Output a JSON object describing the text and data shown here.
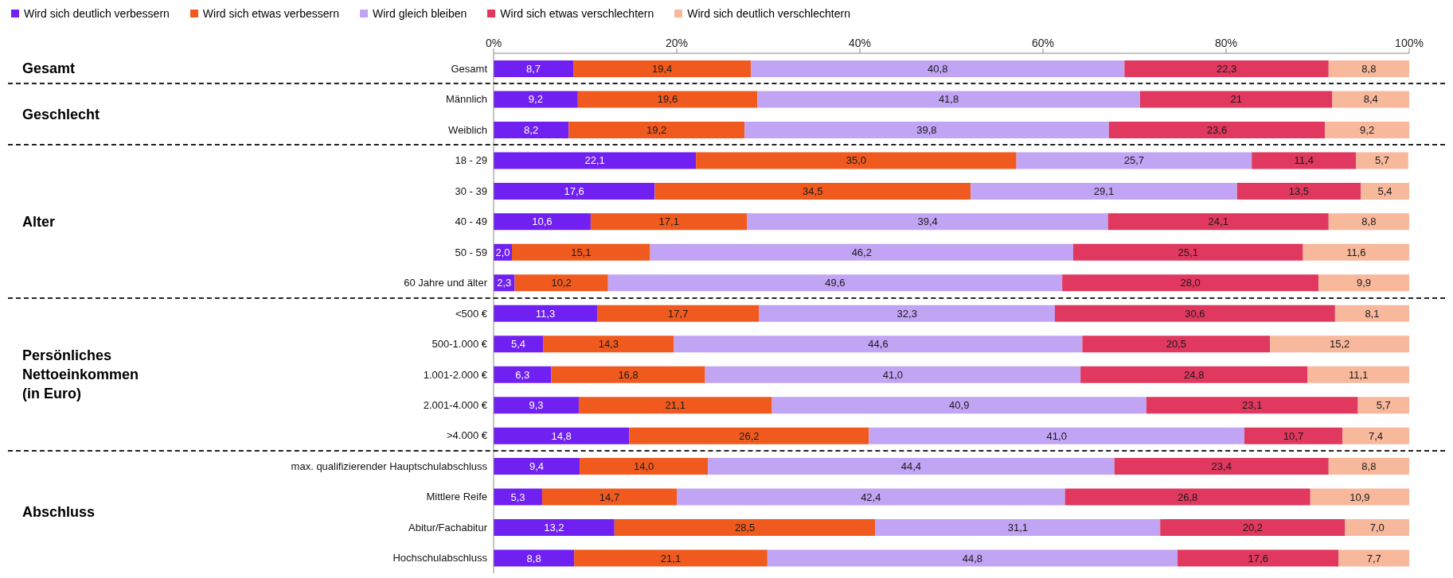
{
  "chart_data": {
    "type": "bar",
    "orientation": "horizontal",
    "stacked": true,
    "legend": "top",
    "categories": [
      "Gesamt",
      "Männlich",
      "Weiblich",
      "18 - 29",
      "30 - 39",
      "40 - 49",
      "50 - 59",
      "60 Jahre und älter",
      "<500 €",
      "500-1.000 €",
      "1.001-2.000 €",
      "2.001-4.000 €",
      ">4.000 €",
      "max. qualifizierender Hauptschulabschluss",
      "Mittlere Reife",
      "Abitur/Fachabitur",
      "Hochschulabschluss"
    ],
    "xlim": [
      0,
      100
    ],
    "xticks": [
      {
        "value": 0,
        "label": "0%"
      },
      {
        "value": 20,
        "label": "20%"
      },
      {
        "value": 40,
        "label": "40%"
      },
      {
        "value": 60,
        "label": "60%"
      },
      {
        "value": 80,
        "label": "80%"
      },
      {
        "value": 100,
        "label": "100%"
      }
    ],
    "series": [
      {
        "name": "Wird sich deutlich verbessern",
        "color": "#7020f0",
        "values": [
          8.7,
          9.2,
          8.2,
          22.1,
          17.6,
          10.6,
          2.0,
          2.3,
          11.3,
          5.4,
          6.3,
          9.3,
          14.8,
          9.4,
          5.3,
          13.2,
          8.8
        ],
        "value_labels": [
          "8,7",
          "9,2",
          "8,2",
          "22,1",
          "17,6",
          "10,6",
          "2,0",
          "2,3",
          "11,3",
          "5,4",
          "6,3",
          "9,3",
          "14,8",
          "9,4",
          "5,3",
          "13,2",
          "8,8"
        ]
      },
      {
        "name": "Wird sich etwas verbessern",
        "color": "#f05a1e",
        "values": [
          19.4,
          19.6,
          19.2,
          35.0,
          34.5,
          17.1,
          15.1,
          10.2,
          17.7,
          14.3,
          16.8,
          21.1,
          26.2,
          14.0,
          14.7,
          28.5,
          21.1
        ],
        "value_labels": [
          "19,4",
          "19,6",
          "19,2",
          "35,0",
          "34,5",
          "17,1",
          "15,1",
          "10,2",
          "17,7",
          "14,3",
          "16,8",
          "21,1",
          "26,2",
          "14,0",
          "14,7",
          "28,5",
          "21,1"
        ]
      },
      {
        "name": "Wird gleich bleiben",
        "color": "#c2a4f5",
        "values": [
          40.8,
          41.8,
          39.8,
          25.7,
          29.1,
          39.4,
          46.2,
          49.6,
          32.3,
          44.6,
          41.0,
          40.9,
          41.0,
          44.4,
          42.4,
          31.1,
          44.8
        ],
        "value_labels": [
          "40,8",
          "41,8",
          "39,8",
          "25,7",
          "29,1",
          "39,4",
          "46,2",
          "49,6",
          "32,3",
          "44,6",
          "41,0",
          "40,9",
          "41,0",
          "44,4",
          "42,4",
          "31,1",
          "44,8"
        ]
      },
      {
        "name": "Wird sich etwas verschlechtern",
        "color": "#e0385e",
        "values": [
          22.3,
          21,
          23.6,
          11.4,
          13.5,
          24.1,
          25.1,
          28.0,
          30.6,
          20.5,
          24.8,
          23.1,
          10.7,
          23.4,
          26.8,
          20.2,
          17.6
        ],
        "value_labels": [
          "22,3",
          "21",
          "23,6",
          "11,4",
          "13,5",
          "24,1",
          "25,1",
          "28,0",
          "30,6",
          "20,5",
          "24,8",
          "23,1",
          "10,7",
          "23,4",
          "26,8",
          "20,2",
          "17,6"
        ]
      },
      {
        "name": "Wird sich deutlich verschlechtern",
        "color": "#f8b89c",
        "values": [
          8.8,
          8.4,
          9.2,
          5.7,
          5.4,
          8.8,
          11.6,
          9.9,
          8.1,
          15.2,
          11.1,
          5.7,
          7.4,
          8.8,
          10.9,
          7.0,
          7.7
        ],
        "value_labels": [
          "8,8",
          "8,4",
          "9,2",
          "5,7",
          "5,4",
          "8,8",
          "11,6",
          "9,9",
          "8,1",
          "15,2",
          "11,1",
          "5,7",
          "7,4",
          "8,8",
          "10,9",
          "7,0",
          "7,7"
        ]
      }
    ],
    "annotations": [
      "Gesamt",
      "Geschlecht",
      "Alter",
      "Persönliches Nettoeinkommen (in Euro)",
      "Abschluss"
    ]
  }
}
